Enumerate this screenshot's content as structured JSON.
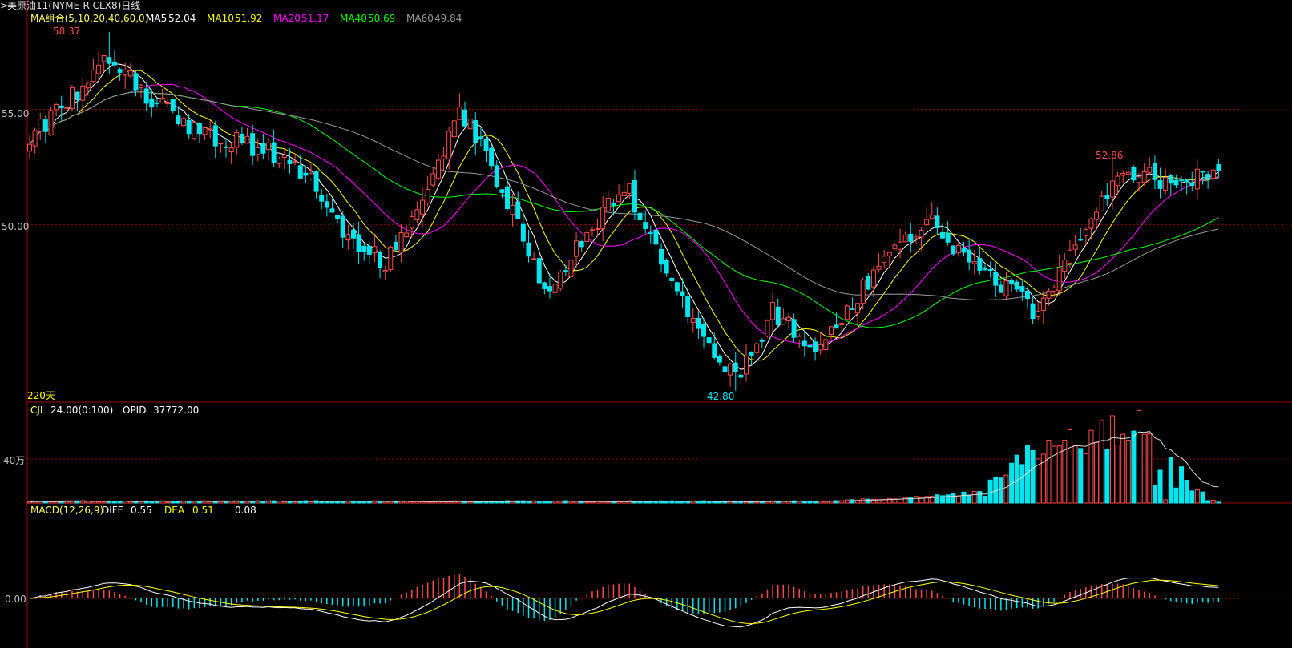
{
  "title": "美原油11(NYME-R CLX8)日线",
  "colors": {
    "background": "#000000",
    "up": "#ff4d4d",
    "down": "#00e5ee",
    "grid": "#8b0000",
    "frame": "#a00000",
    "ma5": "#ffffff",
    "ma10": "#ffff00",
    "ma20": "#ff00ff",
    "ma40": "#00ff00",
    "ma60": "#999999"
  },
  "price_panel": {
    "legend_name": "MA组合(5,10,20,40,60,0)",
    "ma": [
      {
        "label": "MA5",
        "value": "52.04",
        "color": "#ffffff"
      },
      {
        "label": "MA10",
        "value": "51.92",
        "color": "#ffff00"
      },
      {
        "label": "MA20",
        "value": "51.17",
        "color": "#ff00ff"
      },
      {
        "label": "MA40",
        "value": "50.69",
        "color": "#00ff00"
      },
      {
        "label": "MA60",
        "value": "49.84",
        "color": "#999999"
      }
    ],
    "high_label": "58.37",
    "low_label": "42.80",
    "recent_high_label": "52.86",
    "period_label": "220天",
    "y_ticks": [
      "55.00",
      "50.00"
    ]
  },
  "volume_panel": {
    "name": "CJL",
    "value": "24.00(0:100)",
    "opid_label": "OPID",
    "opid_value": "37772.00",
    "y_tick": "40万"
  },
  "macd_panel": {
    "name": "MACD(12,26,9)",
    "diff_label": "DIFF",
    "diff_value": "0.55",
    "dea_label": "DEA",
    "dea_value": "0.51",
    "macd_value": "0.08",
    "y_tick": "0.00"
  },
  "chart_data": {
    "type": "candlestick",
    "title": "美原油11(NYME-R CLX8)日线",
    "price_range": [
      42.3,
      59.2
    ],
    "price_ticks": [
      55.0,
      50.0
    ],
    "key_prices": {
      "high": 58.37,
      "low": 42.8,
      "recent_high": 52.86
    },
    "price_path": [
      [
        0,
        53.8
      ],
      [
        15,
        57.2
      ],
      [
        22,
        55.6
      ],
      [
        32,
        53.9
      ],
      [
        40,
        53.6
      ],
      [
        49,
        52.9
      ],
      [
        54,
        51.6
      ],
      [
        60,
        49.3
      ],
      [
        67,
        48.4
      ],
      [
        75,
        51.1
      ],
      [
        80,
        54.8
      ],
      [
        83,
        54.4
      ],
      [
        89,
        51.6
      ],
      [
        97,
        47.2
      ],
      [
        105,
        49.6
      ],
      [
        112,
        51.8
      ],
      [
        117,
        49.6
      ],
      [
        125,
        45.6
      ],
      [
        133,
        43.3
      ],
      [
        140,
        46.2
      ],
      [
        149,
        44.6
      ],
      [
        157,
        47.2
      ],
      [
        165,
        49.4
      ],
      [
        170,
        50.4
      ],
      [
        176,
        48.4
      ],
      [
        183,
        47.4
      ],
      [
        190,
        46.2
      ],
      [
        197,
        49.3
      ],
      [
        204,
        51.9
      ],
      [
        210,
        52.1
      ],
      [
        218,
        51.8
      ],
      [
        224,
        52.3
      ]
    ],
    "ma_overlays": [
      "MA5",
      "MA10",
      "MA20",
      "MA40",
      "MA60"
    ],
    "volume_max_label": "40万",
    "macd_zero_label": "0.00"
  }
}
